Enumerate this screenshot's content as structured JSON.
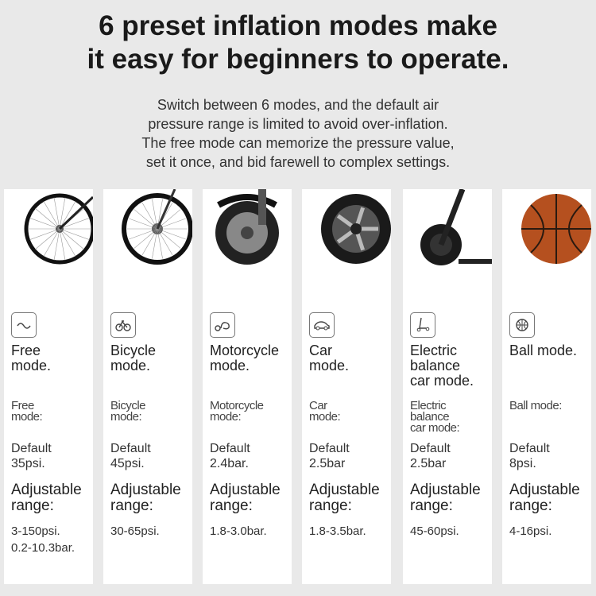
{
  "headline": "6 preset inflation modes make\nit easy for beginners to operate.",
  "description": "Switch between 6 modes, and the default air\npressure range is limited to avoid over-inflation.\nThe free mode can memorize the pressure value,\nset it once, and bid farewell to complex settings.",
  "modes": [
    {
      "icon": "wave-icon",
      "name": "Free\nmode.",
      "label": "Free\nmode:",
      "default": "Default\n35psi.",
      "adjustable": "Adjustable\nrange:",
      "range": "3-150psi.\n0.2-10.3bar."
    },
    {
      "icon": "bicycle-icon",
      "name": "Bicycle\nmode.",
      "label": "Bicycle\nmode:",
      "default": "Default\n45psi.",
      "adjustable": "Adjustable\nrange:",
      "range": "30-65psi."
    },
    {
      "icon": "motorcycle-icon",
      "name": "Motorcycle\nmode.",
      "label": "Motorcycle\nmode:",
      "default": "Default\n2.4bar.",
      "adjustable": "Adjustable\nrange:",
      "range": "1.8-3.0bar."
    },
    {
      "icon": "car-icon",
      "name": "Car\nmode.",
      "label": "Car\nmode:",
      "default": "Default\n2.5bar",
      "adjustable": "Adjustable\nrange:",
      "range": "1.8-3.5bar."
    },
    {
      "icon": "scooter-icon",
      "name": "Electric\nbalance\ncar mode.",
      "label": "Electric\nbalance\ncar mode:",
      "default": "Default\n2.5bar",
      "adjustable": "Adjustable\nrange:",
      "range": "45-60psi."
    },
    {
      "icon": "ball-icon",
      "name": "Ball mode.",
      "label": "Ball mode:",
      "default": "Default\n8psi.",
      "adjustable": "Adjustable\nrange:",
      "range": "4-16psi."
    }
  ]
}
